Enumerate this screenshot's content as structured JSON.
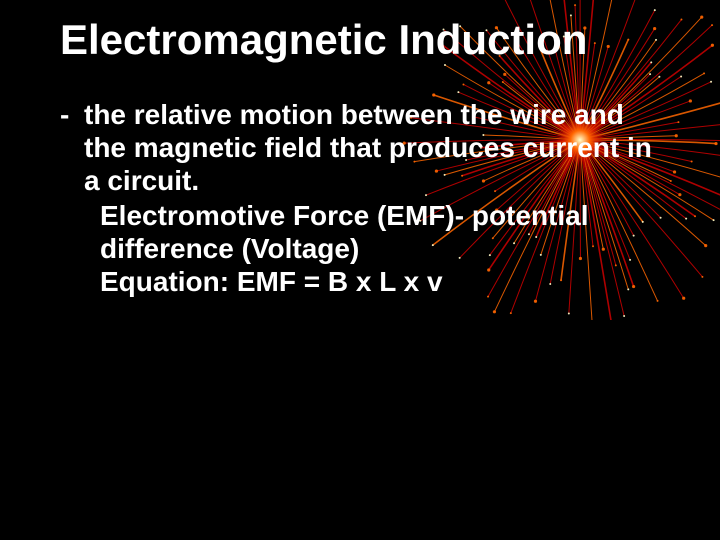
{
  "slide": {
    "title": "Electromagnetic Induction",
    "title_fontsize": 42,
    "title_color": "#ffffff",
    "bullet_marker": "-",
    "bullets": [
      {
        "text": "the relative motion between the wire and the magnetic field that produces current in a circuit."
      }
    ],
    "continuation": [
      "Electromotive Force (EMF)- potential difference (Voltage)",
      "Equation:  EMF = B x L x v"
    ],
    "body_fontsize": 28,
    "body_color": "#ffffff",
    "background_color": "#000000"
  },
  "firework": {
    "center_color": "#ffffcc",
    "mid_color": "#ff6600",
    "outer_color": "#cc0000",
    "strand_count": 110,
    "strand_length": 160,
    "core_radius": 24
  }
}
